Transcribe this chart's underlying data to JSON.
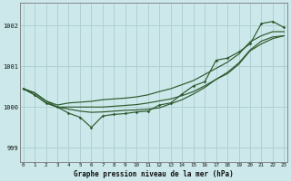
{
  "title": "Graphe pression niveau de la mer (hPa)",
  "bg_color": "#cce8ea",
  "grid_color": "#b0d0d3",
  "line_color": "#2d5a2d",
  "x_ticks": [
    0,
    1,
    2,
    3,
    4,
    5,
    6,
    7,
    8,
    9,
    10,
    11,
    12,
    13,
    14,
    15,
    16,
    17,
    18,
    19,
    20,
    21,
    22,
    23
  ],
  "y_ticks": [
    999,
    1000,
    1001,
    1002
  ],
  "ylim": [
    998.65,
    1002.55
  ],
  "xlim": [
    -0.3,
    23.3
  ],
  "upper_line": [
    1000.45,
    1000.35,
    1000.15,
    1000.05,
    1000.1,
    1000.12,
    1000.14,
    1000.18,
    1000.2,
    1000.22,
    1000.25,
    1000.3,
    1000.38,
    1000.45,
    1000.55,
    1000.65,
    1000.8,
    1000.95,
    1001.1,
    1001.3,
    1001.6,
    1001.75,
    1001.85,
    1001.85
  ],
  "lower_line": [
    1000.45,
    1000.35,
    1000.15,
    1000.0,
    1000.0,
    1000.0,
    1000.0,
    1000.0,
    1000.02,
    1000.04,
    1000.06,
    1000.1,
    1000.15,
    1000.2,
    1000.28,
    1000.38,
    1000.52,
    1000.68,
    1000.82,
    1001.05,
    1001.38,
    1001.55,
    1001.68,
    1001.75
  ],
  "main_line": [
    1000.45,
    1000.3,
    1000.1,
    1000.0,
    999.85,
    999.75,
    999.5,
    999.78,
    999.82,
    999.84,
    999.88,
    999.9,
    1000.05,
    1000.1,
    1000.32,
    1000.52,
    1000.62,
    1001.15,
    1001.2,
    1001.35,
    1001.55,
    1002.05,
    1002.1,
    1001.95
  ],
  "third_line": [
    1000.45,
    1000.3,
    1000.1,
    1000.0,
    999.95,
    999.9,
    999.87,
    999.88,
    999.9,
    999.92,
    999.93,
    999.95,
    999.98,
    1000.08,
    1000.18,
    1000.32,
    1000.48,
    1000.68,
    1000.85,
    1001.08,
    1001.4,
    1001.62,
    1001.72,
    1001.75
  ]
}
